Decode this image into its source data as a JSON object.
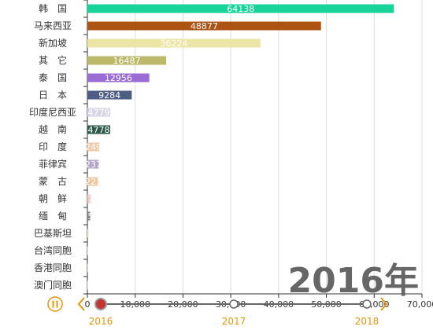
{
  "chart_data": {
    "type": "bar",
    "orientation": "horizontal",
    "year_label": "2016年",
    "categories": [
      "韩　国",
      "马来西亚",
      "新加坡",
      "其　它",
      "泰　国",
      "日　本",
      "印度尼西亚",
      "越　南",
      "印　度",
      "菲律宾",
      "蒙　古",
      "朝　鲜",
      "缅　甸",
      "巴基斯坦",
      "台湾同胞",
      "香港同胞",
      "澳门同胞"
    ],
    "values": [
      64138,
      48877,
      36224,
      16487,
      12956,
      9284,
      4779,
      4778,
      2499,
      2371,
      2237,
      717,
      594,
      334,
      13.6,
      13.2,
      1.1
    ],
    "value_labels": [
      "64138",
      "48877",
      "36224",
      "16487",
      "12956",
      "9284",
      "4779",
      "4778",
      "2499",
      "2371",
      "2237",
      "717",
      "594",
      "334",
      "13.6",
      "13.2",
      "1.1"
    ],
    "colors": [
      "#19d499",
      "#ad5414",
      "#ede5a6",
      "#bdb96b",
      "#9b6cd3",
      "#4d5d83",
      "#d9d4e6",
      "#2e5a4a",
      "#f0c9a8",
      "#b3a5cc",
      "#f0c8a0",
      "#f5c6c6",
      "#808080",
      "#ebf2d9",
      "#bfe6eb",
      "#f2c5b3",
      "#d9f2d9"
    ],
    "xlim": [
      0,
      70000
    ],
    "x_ticks": [
      "0",
      "10,000",
      "20,000",
      "30,000",
      "40,000",
      "50,000",
      "60,000",
      "70,000"
    ],
    "grid": true
  },
  "timeline": {
    "years": [
      "2016",
      "2017",
      "2018"
    ],
    "current": "2016",
    "play_icon": "pause-icon",
    "accent": "#e6960a",
    "marker_color": "#c23531"
  }
}
